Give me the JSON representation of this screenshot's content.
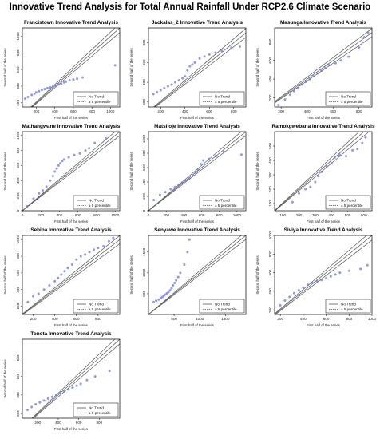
{
  "title": "Innovative Trend Analysis for Total Annual Rainfall Under RCP2.6 Climate Scenario",
  "legend": {
    "no_trend": "No Trend",
    "percentile": "± 5 percentile",
    "placement": "bottom-right"
  },
  "colors": {
    "points": "#6a74e0",
    "line": "#555555",
    "frame": "#000000"
  },
  "chart_data": [
    {
      "type": "scatter",
      "title": "Francistown Innovative Trend Analysis",
      "xlabel": "First half of the series",
      "ylabel": "Second half of the series",
      "xlim": [
        50,
        1100
      ],
      "ylim": [
        150,
        1100
      ],
      "xticks": [
        200,
        400,
        600,
        800,
        1000
      ],
      "yticks": [
        200,
        400,
        600,
        800,
        1000
      ],
      "points": [
        [
          80,
          250
        ],
        [
          110,
          270
        ],
        [
          150,
          295
        ],
        [
          180,
          310
        ],
        [
          200,
          325
        ],
        [
          230,
          340
        ],
        [
          260,
          355
        ],
        [
          290,
          365
        ],
        [
          320,
          375
        ],
        [
          350,
          385
        ],
        [
          380,
          395
        ],
        [
          410,
          405
        ],
        [
          440,
          420
        ],
        [
          470,
          430
        ],
        [
          500,
          445
        ],
        [
          520,
          455
        ],
        [
          560,
          470
        ],
        [
          600,
          480
        ],
        [
          640,
          490
        ],
        [
          700,
          505
        ],
        [
          1050,
          650
        ]
      ]
    },
    {
      "type": "scatter",
      "title": "Jackalas_2 Innovative Trend Analysis",
      "xlabel": "First half of the series",
      "ylabel": "Second half of the series",
      "xlim": [
        100,
        900
      ],
      "ylim": [
        150,
        950
      ],
      "xticks": [
        200,
        400,
        600,
        800
      ],
      "yticks": [
        200,
        400,
        600,
        800
      ],
      "points": [
        [
          140,
          280
        ],
        [
          170,
          300
        ],
        [
          200,
          320
        ],
        [
          230,
          340
        ],
        [
          260,
          360
        ],
        [
          290,
          375
        ],
        [
          320,
          400
        ],
        [
          350,
          420
        ],
        [
          380,
          440
        ],
        [
          400,
          460
        ],
        [
          420,
          520
        ],
        [
          440,
          560
        ],
        [
          460,
          580
        ],
        [
          480,
          600
        ],
        [
          520,
          640
        ],
        [
          560,
          660
        ],
        [
          600,
          680
        ],
        [
          650,
          700
        ],
        [
          700,
          720
        ],
        [
          780,
          750
        ],
        [
          850,
          760
        ]
      ]
    },
    {
      "type": "scatter",
      "title": "Masunga Innovative Trend Analysis",
      "xlabel": "First half of the series",
      "ylabel": "Second half of the series",
      "xlim": [
        150,
        900
      ],
      "ylim": [
        100,
        950
      ],
      "xticks": [
        200,
        400,
        600,
        800
      ],
      "yticks": [
        200,
        400,
        600,
        800
      ],
      "points": [
        [
          180,
          120
        ],
        [
          230,
          180
        ],
        [
          270,
          230
        ],
        [
          300,
          270
        ],
        [
          330,
          300
        ],
        [
          360,
          340
        ],
        [
          390,
          370
        ],
        [
          420,
          400
        ],
        [
          450,
          430
        ],
        [
          480,
          460
        ],
        [
          510,
          490
        ],
        [
          540,
          520
        ],
        [
          570,
          550
        ],
        [
          620,
          570
        ],
        [
          660,
          600
        ],
        [
          720,
          640
        ],
        [
          800,
          740
        ],
        [
          840,
          850
        ],
        [
          870,
          900
        ]
      ]
    },
    {
      "type": "scatter",
      "title": "Mathangwane Innovative Trend Analysis",
      "xlabel": "First half of the series",
      "ylabel": "Second half of the series",
      "xlim": [
        0,
        1050
      ],
      "ylim": [
        0,
        1050
      ],
      "xticks": [
        0,
        200,
        400,
        600,
        800,
        1000
      ],
      "yticks": [
        0,
        200,
        400,
        600,
        800,
        1000
      ],
      "points": [
        [
          50,
          60
        ],
        [
          120,
          160
        ],
        [
          180,
          230
        ],
        [
          220,
          270
        ],
        [
          260,
          320
        ],
        [
          300,
          400
        ],
        [
          330,
          460
        ],
        [
          350,
          520
        ],
        [
          370,
          560
        ],
        [
          390,
          600
        ],
        [
          410,
          630
        ],
        [
          430,
          660
        ],
        [
          450,
          680
        ],
        [
          500,
          710
        ],
        [
          560,
          740
        ],
        [
          620,
          760
        ],
        [
          680,
          800
        ],
        [
          720,
          830
        ],
        [
          780,
          900
        ],
        [
          900,
          960
        ]
      ]
    },
    {
      "type": "scatter",
      "title": "Matsiloje Innovative Trend Analysis",
      "xlabel": "First half of the series",
      "ylabel": "Second half of the series",
      "xlim": [
        0,
        1100
      ],
      "ylim": [
        0,
        1100
      ],
      "xticks": [
        0,
        200,
        400,
        600,
        800,
        1000
      ],
      "yticks": [
        0,
        200,
        400,
        600,
        800,
        1000
      ],
      "points": [
        [
          60,
          150
        ],
        [
          130,
          220
        ],
        [
          190,
          260
        ],
        [
          250,
          300
        ],
        [
          300,
          330
        ],
        [
          340,
          360
        ],
        [
          380,
          390
        ],
        [
          420,
          420
        ],
        [
          460,
          450
        ],
        [
          500,
          490
        ],
        [
          530,
          530
        ],
        [
          560,
          570
        ],
        [
          590,
          650
        ],
        [
          620,
          700
        ],
        [
          680,
          720
        ],
        [
          760,
          760
        ],
        [
          850,
          820
        ],
        [
          1050,
          780
        ]
      ]
    },
    {
      "type": "scatter",
      "title": "Ramokgwebana Innovative Trend Analysis",
      "xlabel": "First half of the series",
      "ylabel": "Second half of the series",
      "xlim": [
        50,
        650
      ],
      "ylim": [
        50,
        600
      ],
      "xticks": [
        100,
        200,
        300,
        400,
        500,
        600
      ],
      "yticks": [
        100,
        200,
        300,
        400,
        500
      ],
      "points": [
        [
          160,
          110
        ],
        [
          200,
          170
        ],
        [
          240,
          200
        ],
        [
          270,
          215
        ],
        [
          300,
          250
        ],
        [
          320,
          290
        ],
        [
          340,
          320
        ],
        [
          370,
          360
        ],
        [
          400,
          380
        ],
        [
          420,
          420
        ],
        [
          450,
          440
        ],
        [
          490,
          430
        ],
        [
          530,
          470
        ],
        [
          560,
          480
        ],
        [
          590,
          520
        ],
        [
          610,
          560
        ]
      ]
    },
    {
      "type": "scatter",
      "title": "Sebina Innovative Trend Analysis",
      "xlabel": "First half of the series",
      "ylabel": "Second half of the series",
      "xlim": [
        100,
        1000
      ],
      "ylim": [
        100,
        1050
      ],
      "xticks": [
        200,
        400,
        600,
        800
      ],
      "yticks": [
        200,
        400,
        600,
        800,
        1000
      ],
      "points": [
        [
          150,
          250
        ],
        [
          200,
          320
        ],
        [
          250,
          350
        ],
        [
          300,
          400
        ],
        [
          350,
          450
        ],
        [
          400,
          500
        ],
        [
          430,
          540
        ],
        [
          460,
          580
        ],
        [
          490,
          620
        ],
        [
          520,
          660
        ],
        [
          560,
          700
        ],
        [
          600,
          760
        ],
        [
          640,
          800
        ],
        [
          680,
          820
        ],
        [
          720,
          850
        ],
        [
          760,
          880
        ],
        [
          800,
          900
        ],
        [
          850,
          920
        ],
        [
          900,
          980
        ],
        [
          940,
          1020
        ]
      ]
    },
    {
      "type": "scatter",
      "title": "Senyawe Innovative Trend Analysis",
      "xlabel": "First half of the series",
      "ylabel": "Second half of the series",
      "xlim": [
        0,
        1900
      ],
      "ylim": [
        0,
        1900
      ],
      "xticks": [
        500,
        1000,
        1500
      ],
      "yticks": [
        500,
        1000,
        1500
      ],
      "points": [
        [
          100,
          300
        ],
        [
          150,
          330
        ],
        [
          200,
          360
        ],
        [
          240,
          390
        ],
        [
          270,
          420
        ],
        [
          300,
          450
        ],
        [
          330,
          480
        ],
        [
          360,
          510
        ],
        [
          390,
          540
        ],
        [
          420,
          580
        ],
        [
          450,
          630
        ],
        [
          480,
          700
        ],
        [
          510,
          760
        ],
        [
          540,
          820
        ],
        [
          580,
          900
        ],
        [
          620,
          1000
        ],
        [
          700,
          1200
        ],
        [
          760,
          1500
        ],
        [
          800,
          1800
        ]
      ]
    },
    {
      "type": "scatter",
      "title": "Siviya Innovative Trend Analysis",
      "xlabel": "First half of the series",
      "ylabel": "Second half of the series",
      "xlim": [
        150,
        1000
      ],
      "ylim": [
        150,
        1000
      ],
      "xticks": [
        200,
        400,
        600,
        800,
        1000
      ],
      "yticks": [
        200,
        400,
        600,
        800,
        1000
      ],
      "points": [
        [
          200,
          250
        ],
        [
          240,
          300
        ],
        [
          280,
          340
        ],
        [
          320,
          380
        ],
        [
          360,
          410
        ],
        [
          400,
          440
        ],
        [
          440,
          470
        ],
        [
          480,
          490
        ],
        [
          520,
          510
        ],
        [
          560,
          520
        ],
        [
          600,
          540
        ],
        [
          640,
          560
        ],
        [
          680,
          580
        ],
        [
          720,
          600
        ],
        [
          800,
          620
        ],
        [
          900,
          640
        ],
        [
          960,
          680
        ]
      ]
    },
    {
      "type": "scatter",
      "title": "Tonota Innovative Trend Analysis",
      "xlabel": "First half of the series",
      "ylabel": "Second half of the series",
      "xlim": [
        50,
        1000
      ],
      "ylim": [
        150,
        1000
      ],
      "xticks": [
        200,
        400,
        600,
        800
      ],
      "yticks": [
        200,
        400,
        600,
        800
      ],
      "points": [
        [
          100,
          240
        ],
        [
          140,
          270
        ],
        [
          180,
          300
        ],
        [
          220,
          320
        ],
        [
          260,
          340
        ],
        [
          300,
          360
        ],
        [
          340,
          380
        ],
        [
          380,
          400
        ],
        [
          420,
          420
        ],
        [
          460,
          440
        ],
        [
          500,
          460
        ],
        [
          540,
          480
        ],
        [
          580,
          500
        ],
        [
          620,
          520
        ],
        [
          680,
          560
        ],
        [
          760,
          600
        ],
        [
          900,
          660
        ]
      ]
    }
  ]
}
